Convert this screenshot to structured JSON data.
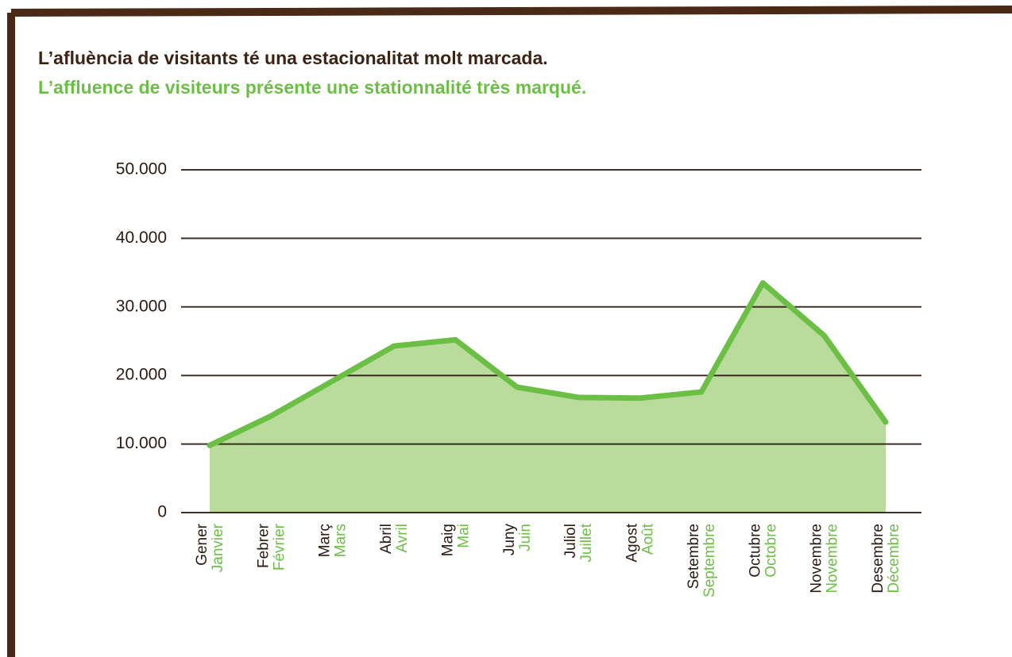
{
  "chart_data": {
    "type": "area",
    "title": "L’afluència de visitants té una estacionalitat molt marcada.",
    "subtitle": "L’affluence de visiteurs présente une stationnalité très marqué.",
    "categories": [
      "Gener",
      "Febrer",
      "Març",
      "Abril",
      "Maig",
      "Juny",
      "Juliol",
      "Agost",
      "Setembre",
      "Octubre",
      "Novembre",
      "Desembre"
    ],
    "categories_secondary": [
      "Janvier",
      "Février",
      "Mars",
      "Avril",
      "Mai",
      "Juin",
      "Juillet",
      "Août",
      "Septembre",
      "Octobre",
      "Novembre",
      "Décembre"
    ],
    "values": [
      9800,
      14100,
      19200,
      24300,
      25200,
      18300,
      16800,
      16700,
      17600,
      33500,
      25800,
      13200
    ],
    "color": "#6cbf45",
    "fill": "#b9dc9c",
    "ylim": [
      0,
      50000
    ],
    "yticks": [
      0,
      {
        "value": 10000,
        "label": "10.000"
      },
      {
        "value": 20000,
        "label": "20.000"
      },
      {
        "value": 30000,
        "label": "30.000"
      },
      {
        "value": 40000,
        "label": "40.000"
      },
      {
        "value": 50000,
        "label": "50.000"
      }
    ],
    "grid": true
  }
}
